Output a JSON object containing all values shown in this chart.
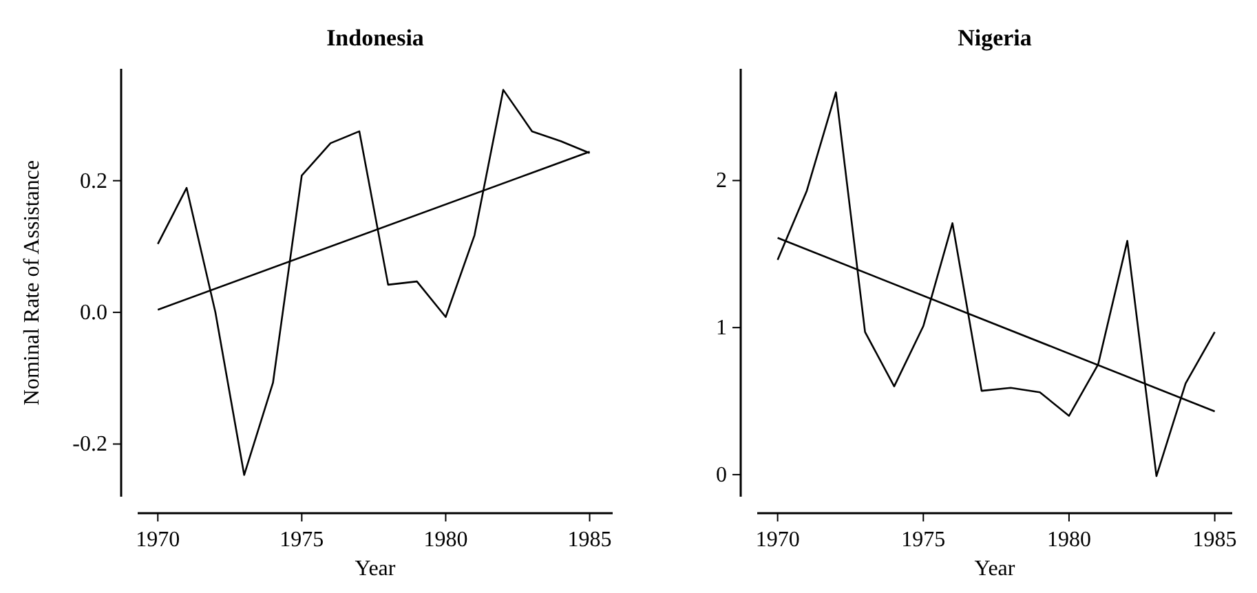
{
  "chart_data": [
    {
      "type": "line",
      "title": "Indonesia",
      "xlabel": "Year",
      "ylabel": "Nominal Rate of Assistance",
      "xlim": [
        1969.3,
        1985.8
      ],
      "xticks": [
        1970,
        1975,
        1980,
        1985
      ],
      "ylim": [
        -0.28,
        0.37
      ],
      "yticks": [
        {
          "value": -0.2,
          "label": "-0.2"
        },
        {
          "value": 0,
          "label": "0.0"
        },
        {
          "value": 0.2,
          "label": "0.2"
        }
      ],
      "grid": false,
      "marker": "none",
      "line_style": "solid",
      "series": [
        {
          "color": "#000000",
          "x": [
            1970,
            1971,
            1972,
            1973,
            1974,
            1975,
            1976,
            1977,
            1978,
            1979,
            1980,
            1981,
            1982,
            1983,
            1984,
            1985
          ],
          "values": [
            0.104,
            0.189,
            0.0,
            -0.247,
            -0.107,
            0.208,
            0.257,
            0.275,
            0.042,
            0.047,
            -0.007,
            0.117,
            0.338,
            0.275,
            0.26,
            0.242
          ]
        },
        {
          "color": "#000000",
          "x": [
            1970,
            1985
          ],
          "values": [
            0.004,
            0.244
          ]
        }
      ]
    },
    {
      "type": "line",
      "title": "Nigeria",
      "xlabel": "Year",
      "xlim": [
        1969.3,
        1985.6
      ],
      "xticks": [
        1970,
        1975,
        1980,
        1985
      ],
      "ylim": [
        -0.15,
        2.76
      ],
      "yticks": [
        0,
        1,
        2
      ],
      "grid": false,
      "marker": "none",
      "line_style": "solid",
      "series": [
        {
          "color": "#000000",
          "x": [
            1970,
            1971,
            1972,
            1973,
            1974,
            1975,
            1976,
            1977,
            1978,
            1979,
            1980,
            1981,
            1982,
            1983,
            1984,
            1985
          ],
          "values": [
            1.46,
            1.93,
            2.6,
            0.97,
            0.6,
            1.01,
            1.71,
            0.57,
            0.59,
            0.56,
            0.4,
            0.75,
            1.59,
            -0.01,
            0.62,
            0.97
          ]
        },
        {
          "color": "#000000",
          "x": [
            1970,
            1985
          ],
          "values": [
            1.61,
            0.43
          ]
        }
      ]
    }
  ]
}
